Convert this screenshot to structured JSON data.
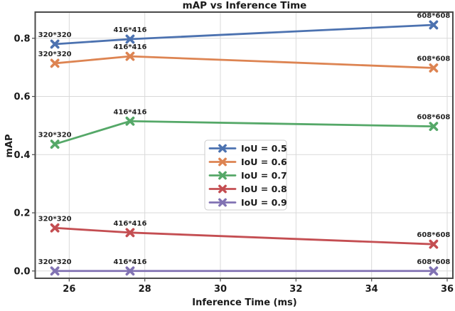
{
  "figure": {
    "title": "mAP vs Inference Time",
    "xlabel": "Inference Time (ms)",
    "ylabel": "mAP"
  },
  "colors": {
    "text": "#262626",
    "tick_text": "#1a1a1a",
    "spine": "#4a4a4a",
    "grid": "#d9d9d9",
    "legend_border": "#cccccc",
    "background": "#ffffff"
  },
  "chart_data": {
    "type": "line",
    "title": "mAP vs Inference Time",
    "xlabel": "Inference Time (ms)",
    "ylabel": "mAP",
    "x": [
      25.62,
      27.61,
      35.64
    ],
    "point_labels": [
      "320*320",
      "416*416",
      "608*608"
    ],
    "series": [
      {
        "name": "IoU = 0.5",
        "color": "#4C72B0",
        "values": [
          0.78,
          0.797,
          0.846
        ]
      },
      {
        "name": "IoU = 0.6",
        "color": "#DD8452",
        "values": [
          0.714,
          0.738,
          0.698
        ]
      },
      {
        "name": "IoU = 0.7",
        "color": "#55A868",
        "values": [
          0.436,
          0.515,
          0.497
        ]
      },
      {
        "name": "IoU = 0.8",
        "color": "#C44E52",
        "values": [
          0.148,
          0.132,
          0.092
        ]
      },
      {
        "name": "IoU = 0.9",
        "color": "#8172B3",
        "values": [
          0.0,
          0.0,
          0.0
        ]
      }
    ],
    "xticks": [
      26,
      28,
      30,
      32,
      34,
      36
    ],
    "yticks": [
      0.0,
      0.2,
      0.4,
      0.6,
      0.8
    ],
    "xlim": [
      25.1,
      36.15
    ],
    "ylim": [
      -0.025,
      0.89
    ],
    "grid": true,
    "marker": "X",
    "legend_position": "center"
  }
}
